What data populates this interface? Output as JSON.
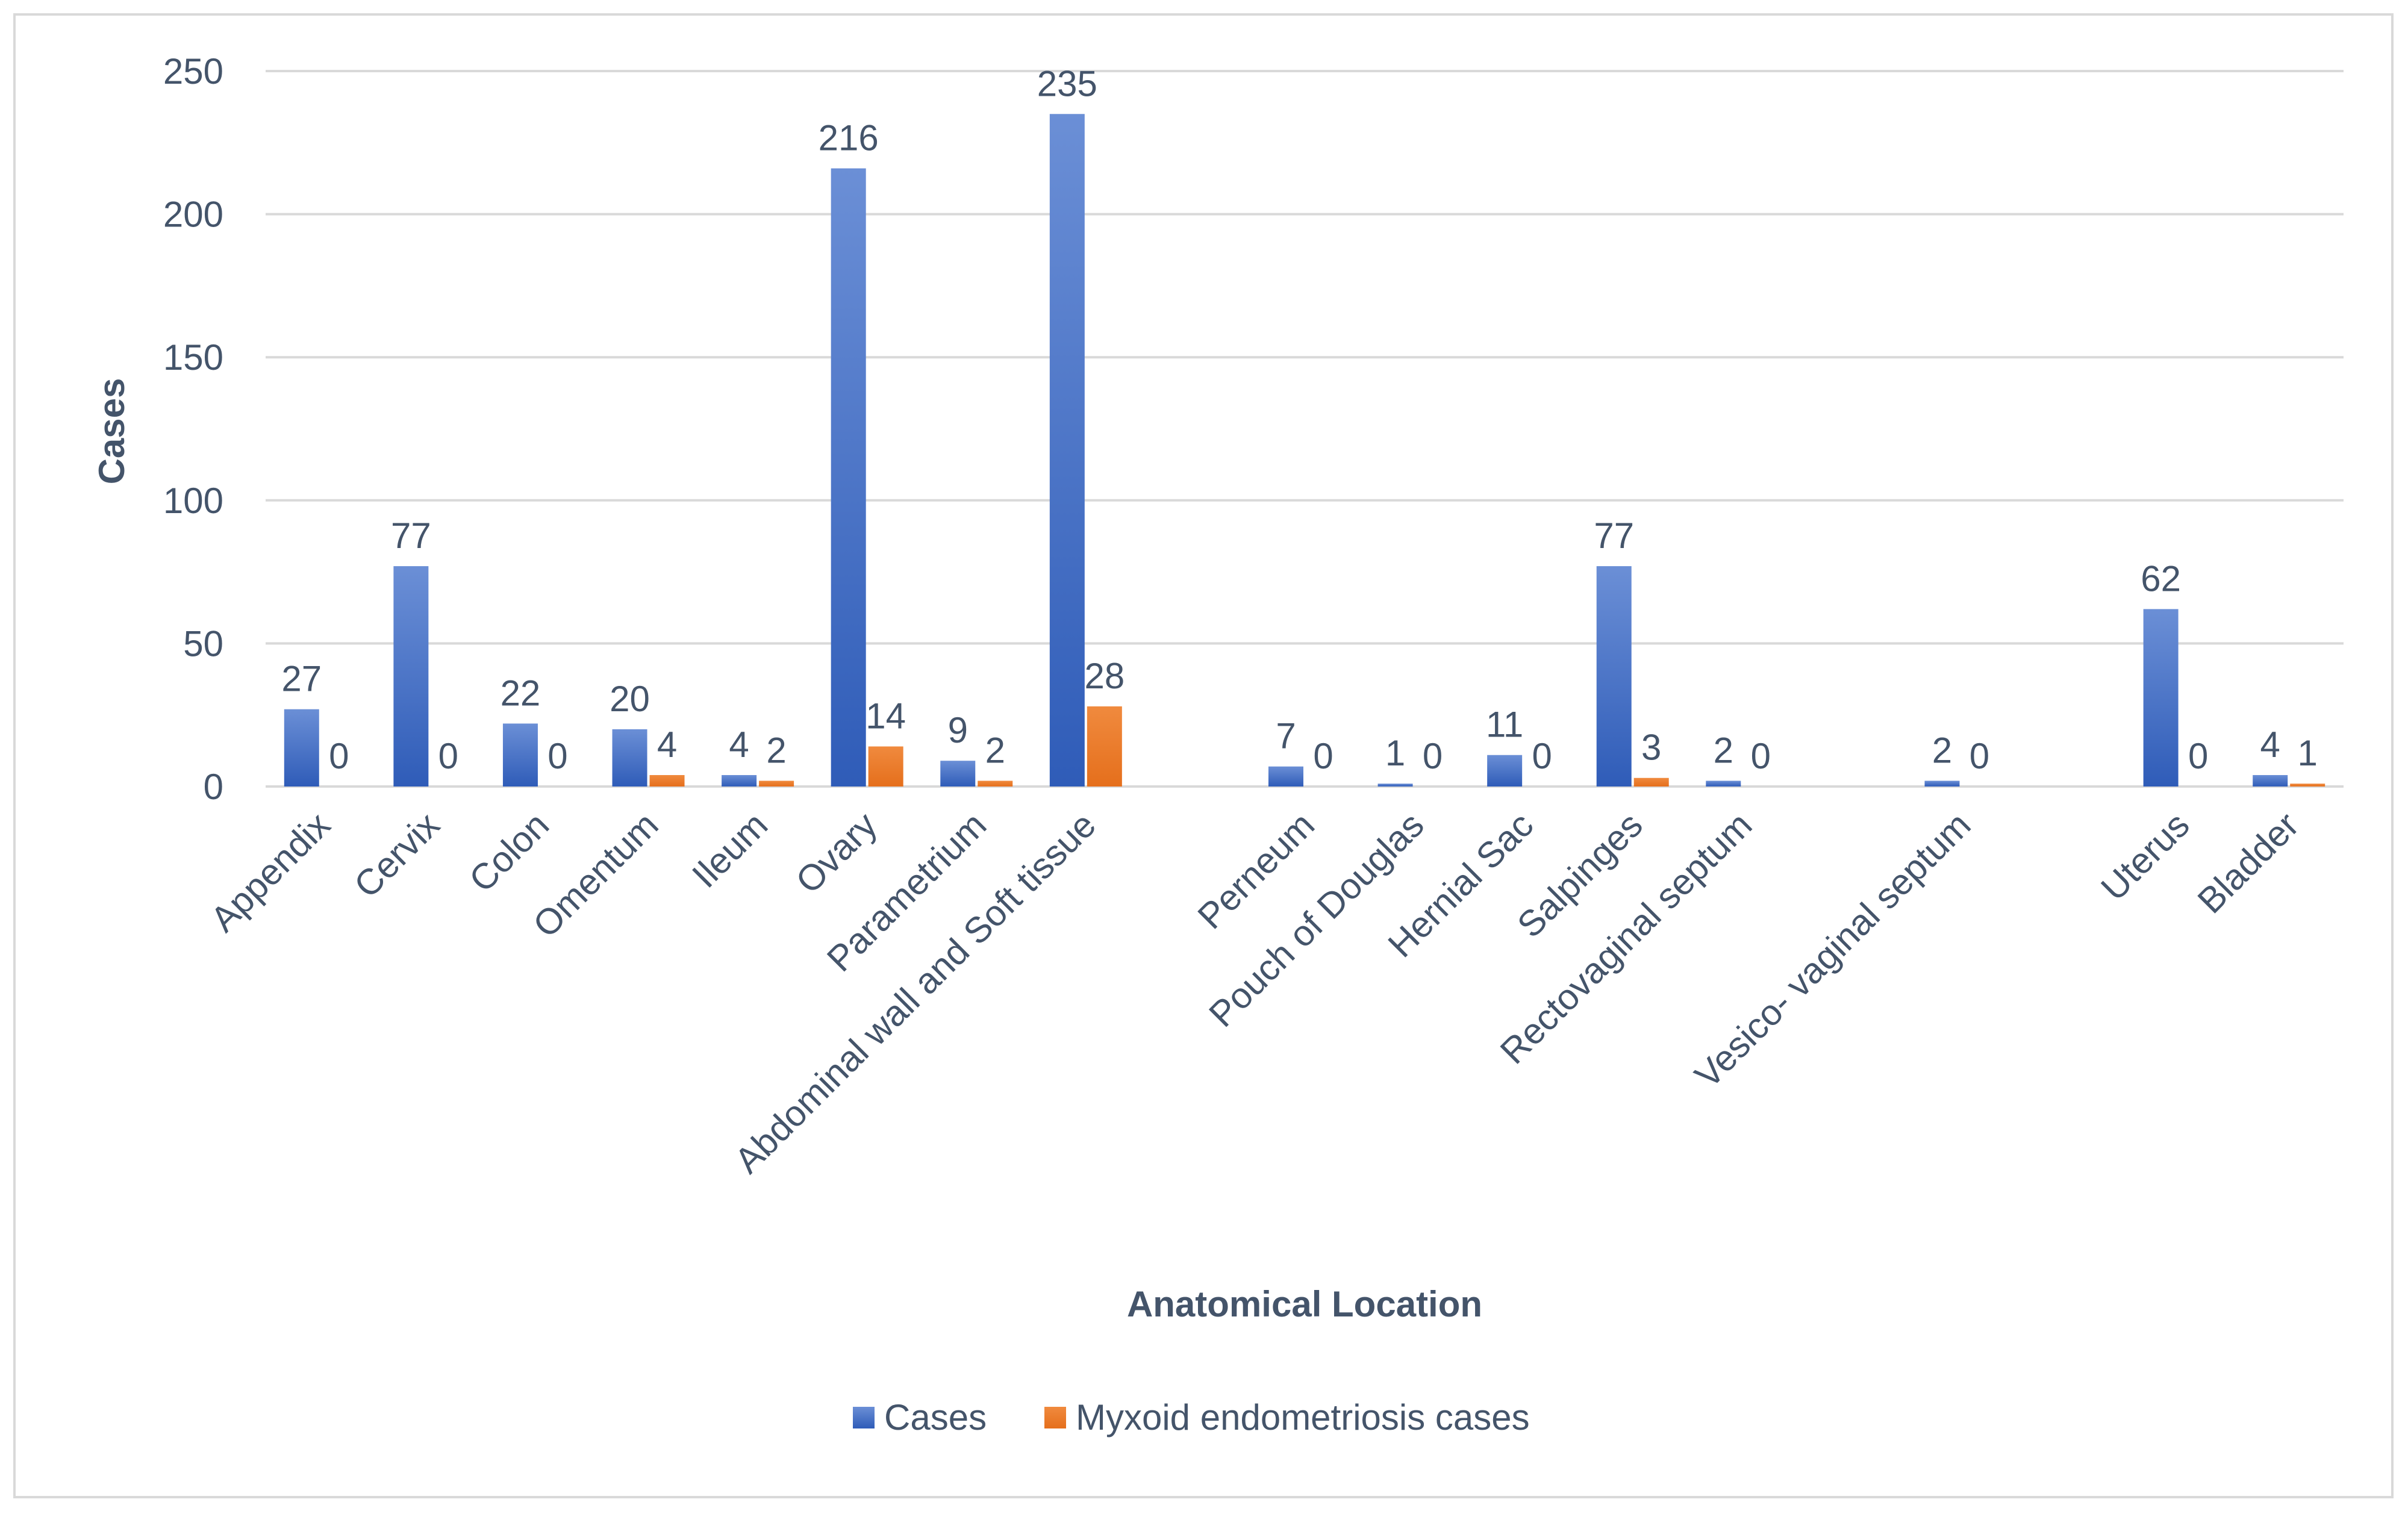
{
  "chart_data": {
    "type": "bar",
    "title": "",
    "xlabel": "Anatomical Location",
    "ylabel": "Cases",
    "ylim": [
      0,
      250
    ],
    "yticks": [
      0,
      50,
      100,
      150,
      200,
      250
    ],
    "grid": true,
    "legend_position": "bottom",
    "categories": [
      "Appendix",
      "Cervix",
      "Colon",
      "Omentum",
      "Ileum",
      "Ovary",
      "Parametrium",
      "Abdominal wall and Soft tissue",
      "",
      "Perneum",
      "Pouch of Douglas",
      "Hernial Sac",
      "Salpinges",
      "Rectovaginal septum",
      "",
      "Vesico- vaginal septum",
      "",
      "Uterus",
      "Bladder"
    ],
    "series": [
      {
        "name": "Cases",
        "color": "#4472c4",
        "values": [
          27,
          77,
          22,
          20,
          4,
          216,
          9,
          235,
          null,
          7,
          1,
          11,
          77,
          2,
          null,
          2,
          null,
          62,
          4
        ]
      },
      {
        "name": "Myxoid endometriosis cases",
        "color": "#ed7d31",
        "values": [
          0,
          0,
          0,
          4,
          2,
          14,
          2,
          28,
          null,
          0,
          0,
          0,
          3,
          0,
          null,
          0,
          null,
          0,
          1
        ]
      }
    ]
  }
}
